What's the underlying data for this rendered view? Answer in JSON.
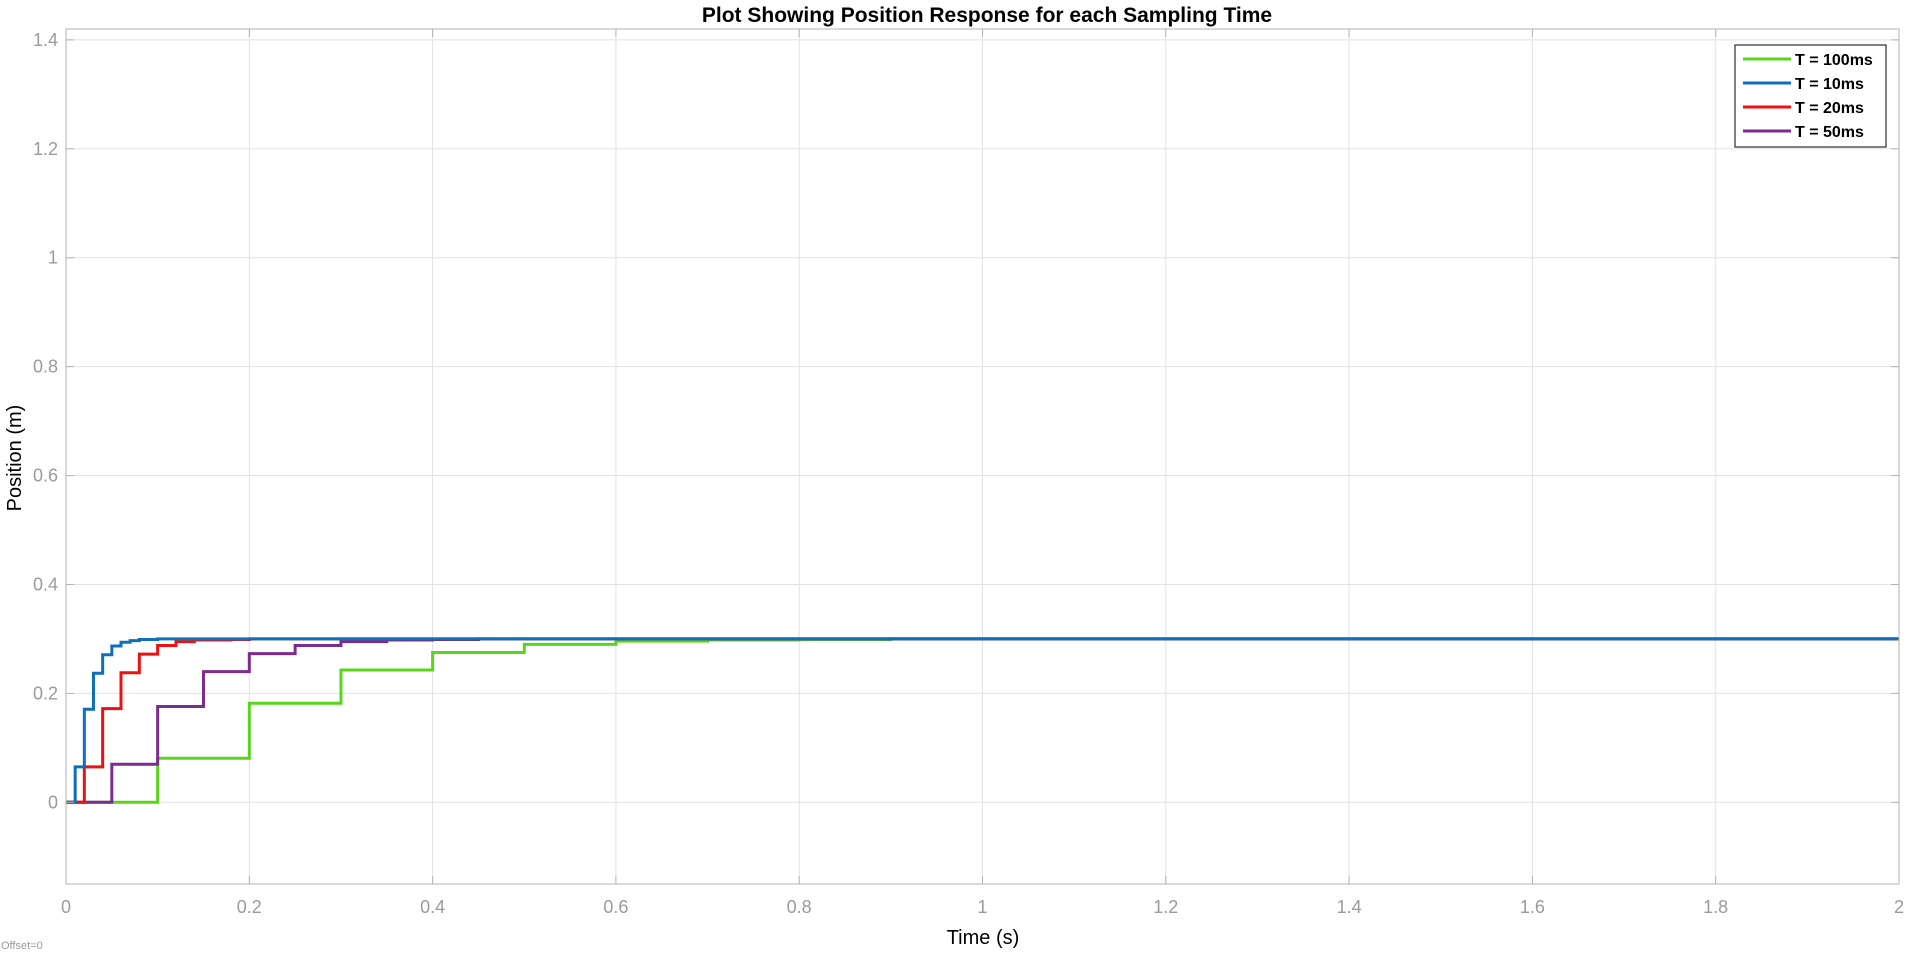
{
  "chart_data": {
    "type": "line",
    "title": "Plot Showing Position Response for each Sampling Time",
    "xlabel": "Time (s)",
    "ylabel": "Position (m)",
    "xlim": [
      0,
      2
    ],
    "ylim": [
      -0.15,
      1.42
    ],
    "xticks": [
      0,
      0.2,
      0.4,
      0.6,
      0.8,
      1,
      1.2,
      1.4,
      1.6,
      1.8,
      2
    ],
    "xtick_labels": [
      "0",
      "0.2",
      "0.4",
      "0.6",
      "0.8",
      "1",
      "1.2",
      "1.4",
      "1.6",
      "1.8",
      "2"
    ],
    "yticks": [
      0,
      0.2,
      0.4,
      0.6,
      0.8,
      1,
      1.2,
      1.4
    ],
    "ytick_labels": [
      "0",
      "0.2",
      "0.4",
      "0.6",
      "0.8",
      "1",
      "1.2",
      "1.4"
    ],
    "grid": true,
    "legend_position": "top-right",
    "step": true,
    "series": [
      {
        "name": "T = 100ms",
        "color": "#5ad51c",
        "x": [
          0,
          0.1,
          0.2,
          0.3,
          0.4,
          0.5,
          0.6,
          0.7,
          0.8,
          0.9,
          2.0
        ],
        "y": [
          0,
          0.081,
          0.182,
          0.243,
          0.275,
          0.29,
          0.296,
          0.298,
          0.299,
          0.3,
          0.3
        ]
      },
      {
        "name": "T = 10ms",
        "color": "#0f6fb8",
        "x": [
          0,
          0.01,
          0.02,
          0.03,
          0.04,
          0.05,
          0.06,
          0.07,
          0.08,
          0.1,
          0.12,
          2.0
        ],
        "y": [
          0,
          0.065,
          0.171,
          0.237,
          0.271,
          0.287,
          0.294,
          0.297,
          0.299,
          0.3,
          0.3,
          0.3
        ]
      },
      {
        "name": "T = 20ms",
        "color": "#ee1111",
        "x": [
          0,
          0.02,
          0.04,
          0.06,
          0.08,
          0.1,
          0.12,
          0.14,
          0.18,
          0.2,
          2.0
        ],
        "y": [
          0,
          0.065,
          0.172,
          0.238,
          0.272,
          0.288,
          0.295,
          0.298,
          0.299,
          0.3,
          0.3
        ]
      },
      {
        "name": "T = 50ms",
        "color": "#7b2c8e",
        "x": [
          0,
          0.05,
          0.1,
          0.15,
          0.2,
          0.25,
          0.3,
          0.35,
          0.4,
          0.45,
          0.5,
          2.0
        ],
        "y": [
          0,
          0.07,
          0.176,
          0.24,
          0.273,
          0.288,
          0.295,
          0.298,
          0.299,
          0.3,
          0.3,
          0.3
        ]
      }
    ]
  },
  "offset_label": "Offset=0"
}
